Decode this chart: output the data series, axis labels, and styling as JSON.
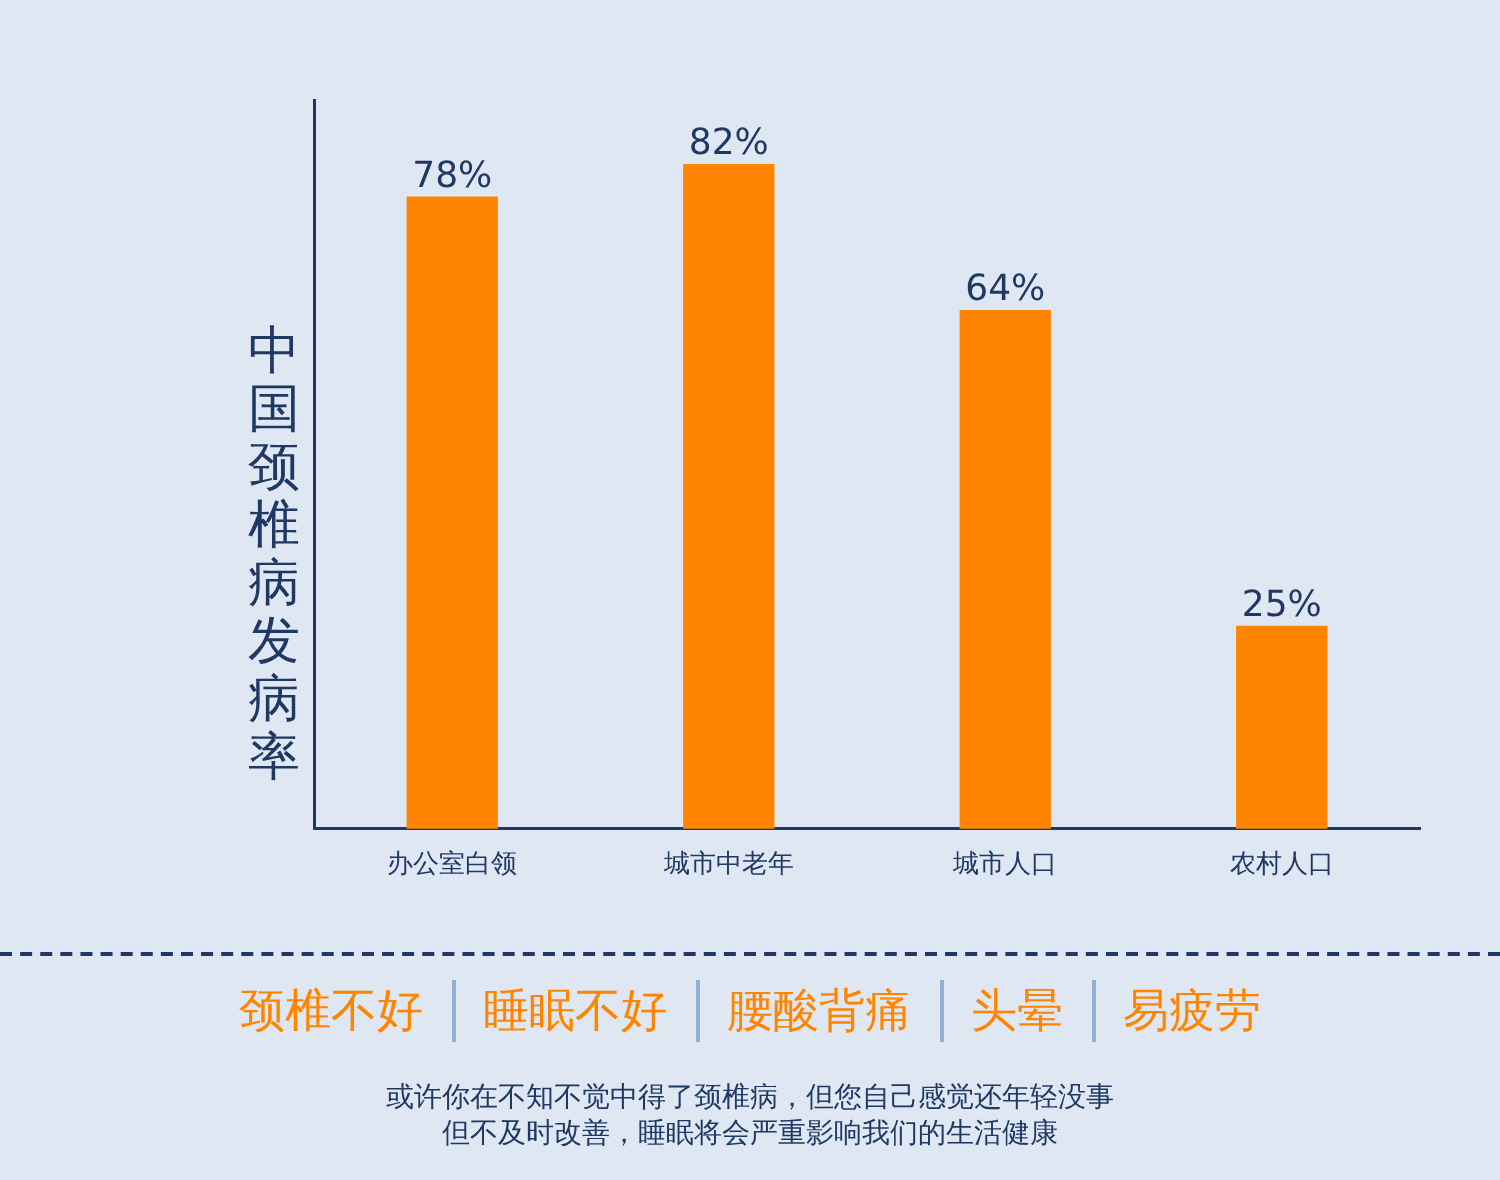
{
  "chart_data": {
    "type": "bar",
    "ylabel": "中国颈椎病发病率",
    "categories": [
      "办公室白领",
      "城市中老年",
      "城市人口",
      "农村人口"
    ],
    "values": [
      78,
      82,
      64,
      25
    ],
    "value_labels": [
      "78%",
      "82%",
      "64%",
      "25%"
    ],
    "color": "#ff8500",
    "grid": false,
    "legend": false,
    "annotations": [
      "颈椎不好",
      "睡眠不好",
      "腰酸背痛",
      "头晕",
      "易疲劳",
      "或许你在不知不觉中得了颈椎病，但您自己感觉还年轻没事",
      "但不及时改善，睡眠将会严重影响我们的生活健康"
    ]
  }
}
